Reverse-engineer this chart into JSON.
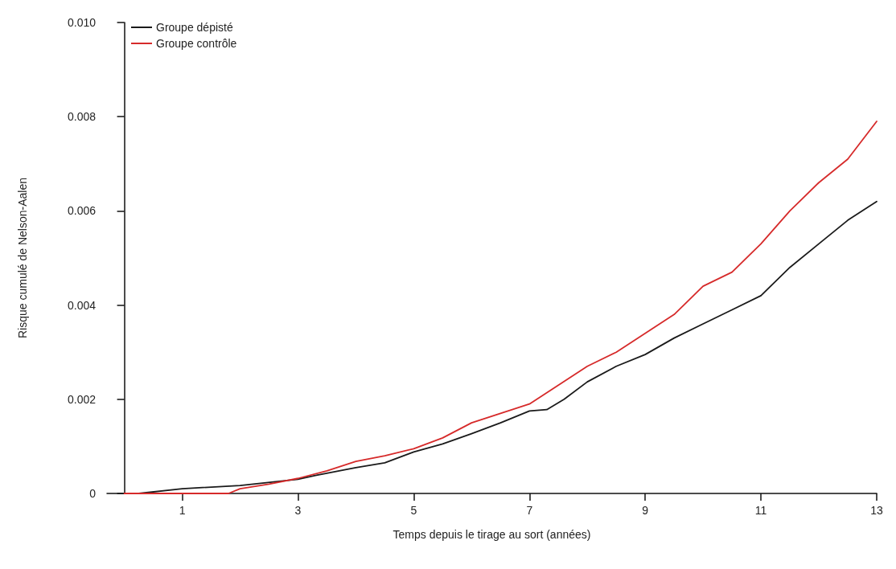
{
  "chart_data": {
    "type": "line",
    "xlabel": "Temps depuis le tirage au sort (années)",
    "ylabel": "Risque cumulé de Nelson-Aalen",
    "xlim": [
      -0.3,
      13
    ],
    "xticks": [
      1,
      3,
      5,
      7,
      9,
      11,
      13
    ],
    "ylim": [
      0,
      0.01
    ],
    "yticks": [
      0,
      0.002,
      0.004,
      0.006,
      0.008,
      {
        "value": 0.01,
        "label": "0.010"
      }
    ],
    "grid": false,
    "legend": "top left",
    "marker": "none",
    "line_style": "solid",
    "series": [
      {
        "name": "Groupe dépisté",
        "color": "#1a1a1a",
        "x": [
          0.25,
          1,
          2,
          3,
          3.3,
          4,
          4.5,
          5,
          5.5,
          6,
          6.5,
          7,
          7.3,
          7.6,
          8,
          8.5,
          9,
          9.5,
          10,
          10.5,
          11,
          11.5,
          12,
          12.5,
          13
        ],
        "values": [
          0,
          0.0001,
          0.00017,
          0.0003,
          0.00038,
          0.00055,
          0.00065,
          0.00088,
          0.00105,
          0.00127,
          0.0015,
          0.00175,
          0.00178,
          0.002,
          0.00237,
          0.0027,
          0.00295,
          0.0033,
          0.0036,
          0.0039,
          0.0042,
          0.0048,
          0.0053,
          0.0058,
          0.0062
        ]
      },
      {
        "name": "Groupe contrôle",
        "color": "#d62a2a",
        "x": [
          0,
          1,
          1.8,
          2,
          2.5,
          3,
          3.5,
          4,
          4.5,
          5,
          5.5,
          6,
          6.5,
          7,
          7.5,
          8,
          8.5,
          9,
          9.5,
          10,
          10.5,
          11,
          11.5,
          12,
          12.5,
          13
        ],
        "values": [
          0,
          0,
          0,
          0.0001,
          0.0002,
          0.00032,
          0.00048,
          0.00068,
          0.0008,
          0.00095,
          0.00118,
          0.0015,
          0.0017,
          0.0019,
          0.0023,
          0.0027,
          0.003,
          0.0034,
          0.0038,
          0.0044,
          0.0047,
          0.0053,
          0.006,
          0.0066,
          0.0071,
          0.0079
        ]
      }
    ]
  }
}
